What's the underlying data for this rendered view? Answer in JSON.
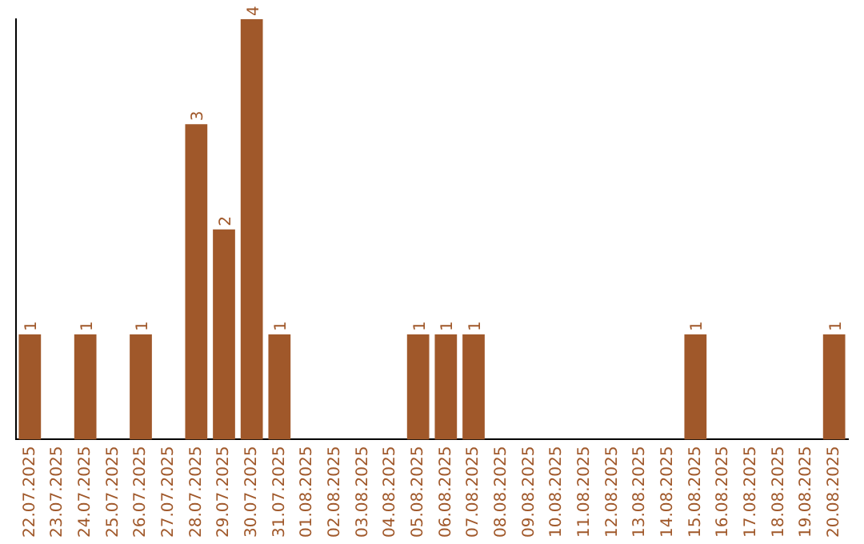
{
  "chart_data": {
    "type": "bar",
    "categories": [
      "22.07.2025",
      "23.07.2025",
      "24.07.2025",
      "25.07.2025",
      "26.07.2025",
      "27.07.2025",
      "28.07.2025",
      "29.07.2025",
      "30.07.2025",
      "31.07.2025",
      "01.08.2025",
      "02.08.2025",
      "03.08.2025",
      "04.08.2025",
      "05.08.2025",
      "06.08.2025",
      "07.08.2025",
      "08.08.2025",
      "09.08.2025",
      "10.08.2025",
      "11.08.2025",
      "12.08.2025",
      "13.08.2025",
      "14.08.2025",
      "15.08.2025",
      "16.08.2025",
      "17.08.2025",
      "18.08.2025",
      "19.08.2025",
      "20.08.2025"
    ],
    "values": [
      1,
      0,
      1,
      0,
      1,
      0,
      3,
      2,
      4,
      1,
      0,
      0,
      0,
      0,
      1,
      1,
      1,
      0,
      0,
      0,
      0,
      0,
      0,
      0,
      1,
      0,
      0,
      0,
      0,
      1
    ],
    "value_labels": [
      "1",
      null,
      "1",
      null,
      "1",
      null,
      "3",
      "2",
      "4",
      "1",
      null,
      null,
      null,
      null,
      "1",
      "1",
      "1",
      null,
      null,
      null,
      null,
      null,
      null,
      null,
      "1",
      null,
      null,
      null,
      null,
      "1"
    ],
    "color": "#a0582a",
    "tick_labels": "x",
    "grid": false,
    "legend": false
  }
}
